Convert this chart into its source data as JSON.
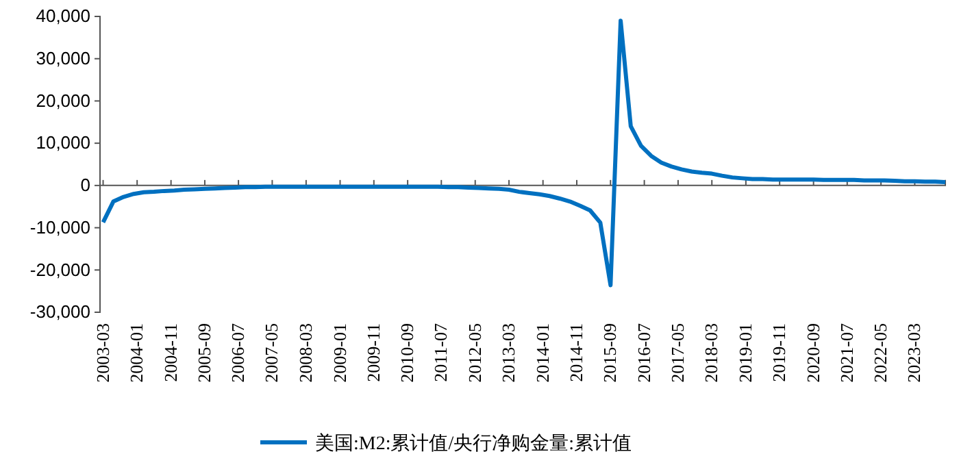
{
  "chart_data": {
    "type": "line",
    "legend": "bottom",
    "xlim": [
      "2003-02",
      "2023-12"
    ],
    "ylim": [
      -30000,
      40000
    ],
    "yticks": [
      {
        "value": -30000,
        "label": "-30,000"
      },
      {
        "value": -20000,
        "label": "-20,000"
      },
      {
        "value": -10000,
        "label": "-10,000"
      },
      0,
      {
        "value": 10000,
        "label": "10,000"
      },
      {
        "value": 20000,
        "label": "20,000"
      },
      {
        "value": 30000,
        "label": "30,000"
      },
      {
        "value": 40000,
        "label": "40,000"
      }
    ],
    "xticks": [
      "2003-03",
      "2004-01",
      "2004-11",
      "2005-09",
      "2006-07",
      "2007-05",
      "2008-03",
      "2009-01",
      "2009-11",
      "2010-09",
      "2011-07",
      "2012-05",
      "2013-03",
      "2014-01",
      "2014-11",
      "2015-09",
      "2016-07",
      "2017-05",
      "2018-03",
      "2019-01",
      "2019-11",
      "2020-09",
      "2021-07",
      "2022-05",
      "2023-03"
    ],
    "x": [
      "2003-03",
      "2003-06",
      "2003-09",
      "2003-12",
      "2004-03",
      "2004-06",
      "2004-09",
      "2004-12",
      "2005-03",
      "2005-06",
      "2005-09",
      "2005-12",
      "2006-03",
      "2006-06",
      "2006-09",
      "2006-12",
      "2007-03",
      "2007-06",
      "2007-09",
      "2007-12",
      "2008-03",
      "2008-06",
      "2008-09",
      "2008-12",
      "2009-03",
      "2009-06",
      "2009-09",
      "2009-12",
      "2010-03",
      "2010-06",
      "2010-09",
      "2010-12",
      "2011-03",
      "2011-06",
      "2011-09",
      "2011-12",
      "2012-03",
      "2012-06",
      "2012-09",
      "2012-12",
      "2013-03",
      "2013-06",
      "2013-09",
      "2013-12",
      "2014-03",
      "2014-06",
      "2014-09",
      "2014-12",
      "2015-03",
      "2015-06",
      "2015-09",
      "2015-12",
      "2016-03",
      "2016-06",
      "2016-09",
      "2016-12",
      "2017-03",
      "2017-06",
      "2017-09",
      "2017-12",
      "2018-03",
      "2018-06",
      "2018-09",
      "2018-12",
      "2019-03",
      "2019-06",
      "2019-09",
      "2019-12",
      "2020-03",
      "2020-06",
      "2020-09",
      "2020-12",
      "2021-03",
      "2021-06",
      "2021-09",
      "2021-12",
      "2022-03",
      "2022-06",
      "2022-09",
      "2022-12",
      "2023-03",
      "2023-06",
      "2023-09",
      "2023-12"
    ],
    "series": [
      {
        "name": "美国:M2:累计值/央行净购金量:累计值",
        "color": "#0070c0",
        "values": [
          -8700,
          -3800,
          -2700,
          -2000,
          -1600,
          -1500,
          -1300,
          -1200,
          -1000,
          -900,
          -800,
          -700,
          -600,
          -500,
          -400,
          -400,
          -300,
          -300,
          -300,
          -300,
          -300,
          -300,
          -300,
          -300,
          -300,
          -300,
          -300,
          -300,
          -300,
          -300,
          -300,
          -300,
          -300,
          -300,
          -400,
          -400,
          -500,
          -600,
          -700,
          -800,
          -1000,
          -1500,
          -1800,
          -2100,
          -2500,
          -3100,
          -3800,
          -4800,
          -5900,
          -8800,
          -23600,
          39000,
          14000,
          9400,
          7000,
          5400,
          4500,
          3800,
          3300,
          3000,
          2800,
          2300,
          1900,
          1700,
          1500,
          1500,
          1400,
          1400,
          1400,
          1400,
          1400,
          1300,
          1300,
          1300,
          1300,
          1200,
          1200,
          1200,
          1100,
          1000,
          1000,
          900,
          900,
          800
        ]
      }
    ]
  }
}
